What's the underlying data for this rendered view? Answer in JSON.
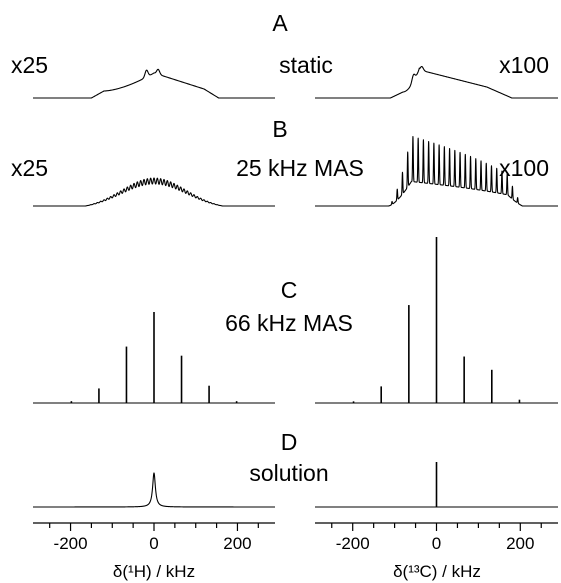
{
  "chart_data": {
    "type": "line",
    "description_text": {
      "panels": [
        {
          "letter": "A",
          "label": "static",
          "left_scale": "x25",
          "right_scale": "x100"
        },
        {
          "letter": "B",
          "label": "25 kHz MAS",
          "left_scale": "x25",
          "right_scale": "x100"
        },
        {
          "letter": "C",
          "label": "66 kHz MAS",
          "left_scale": "",
          "right_scale": ""
        },
        {
          "letter": "D",
          "label": "solution",
          "left_scale": "",
          "right_scale": ""
        }
      ]
    },
    "x_axes": [
      {
        "label": "δ(¹H) / kHz",
        "xlim": [
          -290,
          290
        ],
        "ticks": [
          -200,
          0,
          200
        ],
        "minor_step": 50
      },
      {
        "label": "δ(¹³C) / kHz",
        "xlim": [
          -290,
          290
        ],
        "ticks": [
          -200,
          0,
          200
        ],
        "minor_step": 50
      }
    ],
    "spinning_sidebands": {
      "C_66kHz": {
        "spacing_kHz": 66,
        "H1": {
          "x": [
            -198,
            -132,
            -66,
            0,
            66,
            132,
            198
          ],
          "relative_height": [
            0.02,
            0.16,
            0.62,
            1.0,
            0.52,
            0.19,
            0.02
          ]
        },
        "C13": {
          "x": [
            -198,
            -132,
            -66,
            0,
            66,
            132,
            198
          ],
          "relative_height": [
            0.01,
            0.1,
            0.59,
            1.0,
            0.28,
            0.2,
            0.02
          ]
        }
      },
      "B_25kHz": {
        "spacing_kHz": 25
      },
      "D_solution": {
        "H1": {
          "x": [
            0
          ],
          "relative_height": [
            1.0
          ],
          "width": "broad"
        },
        "C13": {
          "x": [
            0
          ],
          "relative_height": [
            1.0
          ],
          "width": "narrow"
        }
      }
    }
  }
}
